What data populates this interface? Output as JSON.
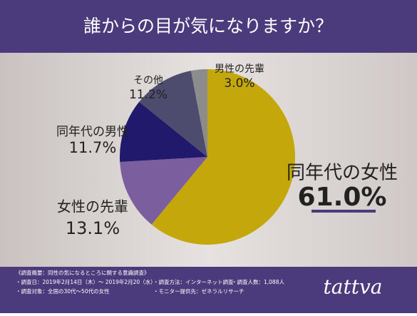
{
  "chart_data": {
    "type": "pie",
    "title": "誰からの目が気になりますか？",
    "categories": [
      "同年代の女性",
      "女性の先輩",
      "同年代の男性",
      "その他",
      "男性の先輩"
    ],
    "values": [
      61.0,
      13.1,
      11.7,
      11.2,
      3.0
    ],
    "value_labels": [
      "61.0%",
      "13.1%",
      "11.7%",
      "11.2%",
      "3.0%"
    ],
    "colors": [
      "#c4a70a",
      "#7a5e9e",
      "#211a6c",
      "#4d4b6e",
      "#8c8c8c"
    ],
    "notes": [
      "《調査概要：同性の気になるところに関する意識調査》",
      "・調査日：2019年2月14日（木）～ 2019年2月20（水）",
      "・調査方法：インターネット調査",
      "・調査人数：1,088人",
      "・調査対象：全国の30代～50代の女性",
      "・モニター提供先：ゼネラルリサーチ"
    ],
    "brand": "tattva"
  }
}
